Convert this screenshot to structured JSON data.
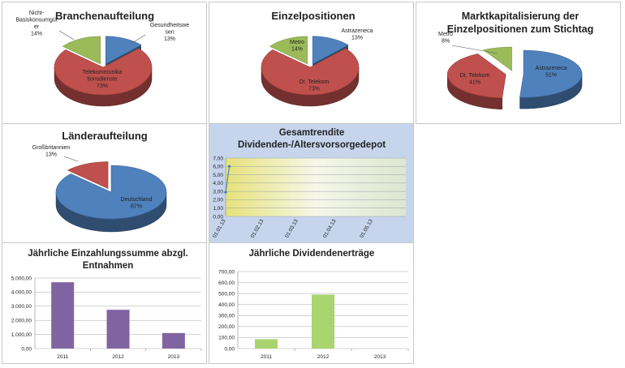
{
  "colors": {
    "blue": "#4f81bd",
    "red": "#c0504d",
    "green": "#9bbb59",
    "purple": "#8064a2",
    "lightgreen": "#a9d46f",
    "line": "#4f81bd"
  },
  "chart_data": [
    {
      "id": "branchen",
      "type": "pie",
      "title": "Branchenaufteilung",
      "slices": [
        {
          "label": "Gesundheitswesen",
          "label_lines": [
            "Gesundheitswe",
            "sen"
          ],
          "pct_label": "13%",
          "value": 13,
          "color": "#4f81bd"
        },
        {
          "label": "Telekommunikationsdienste",
          "label_lines": [
            "Telekommunika",
            "tionsdienste"
          ],
          "pct_label": "73%",
          "value": 73,
          "color": "#c0504d"
        },
        {
          "label": "Nicht-Basiskonsumgüter",
          "label_lines": [
            "Nicht-",
            "Basiskonsumgüt",
            "er"
          ],
          "pct_label": "14%",
          "value": 14,
          "color": "#9bbb59"
        }
      ]
    },
    {
      "id": "einzel",
      "type": "pie",
      "title": "Einzelpositionen",
      "slices": [
        {
          "label": "Astrazeneca",
          "label_lines": [
            "Astrazeneca"
          ],
          "pct_label": "13%",
          "value": 13,
          "color": "#4f81bd"
        },
        {
          "label": "Dt. Telekom",
          "label_lines": [
            "Dt. Telekom"
          ],
          "pct_label": "73%",
          "value": 73,
          "color": "#c0504d"
        },
        {
          "label": "Metro",
          "label_lines": [
            "Metro"
          ],
          "pct_label": "14%",
          "value": 14,
          "color": "#9bbb59"
        }
      ]
    },
    {
      "id": "marktkap",
      "type": "pie",
      "title": "Marktkapitalisierung der Einzelpositionen zum Stichtag",
      "title_lines": [
        "Marktkapitalisierung der",
        "Einzelpositionen zum Stichtag"
      ],
      "slices": [
        {
          "label": "Astrazeneca",
          "label_lines": [
            "Astrazeneca"
          ],
          "pct_label": "51%",
          "value": 51,
          "color": "#4f81bd"
        },
        {
          "label": "Dt. Telekom",
          "label_lines": [
            "Dt. Telekom"
          ],
          "pct_label": "41%",
          "value": 41,
          "color": "#c0504d"
        },
        {
          "label": "Metro",
          "label_lines": [
            "Metro"
          ],
          "pct_label": "8%",
          "value": 8,
          "color": "#9bbb59"
        }
      ]
    },
    {
      "id": "laender",
      "type": "pie",
      "title": "Länderaufteilung",
      "slices": [
        {
          "label": "Deutschland",
          "label_lines": [
            "Deutschland"
          ],
          "pct_label": "87%",
          "value": 87,
          "color": "#4f81bd"
        },
        {
          "label": "Großbritannien",
          "label_lines": [
            "Großbritannien"
          ],
          "pct_label": "13%",
          "value": 13,
          "color": "#c0504d"
        }
      ]
    },
    {
      "id": "gesamtrendite",
      "type": "line",
      "title": "Gesamtrendite Dividenden-/Altersvorsorgedepot",
      "title_lines": [
        "Gesamtrendite",
        "Dividenden-/Altersvorsorgedepot"
      ],
      "x_ticks": [
        "01.01.13",
        "01.02.13",
        "01.03.13",
        "01.04.13",
        "01.05.13"
      ],
      "y_ticks": [
        "0,00",
        "1,00",
        "2,00",
        "3,00",
        "4,00",
        "5,00",
        "6,00",
        "7,00"
      ],
      "ylim": [
        0,
        7
      ],
      "xlim": [
        "2013-01-01",
        "2013-05-28"
      ],
      "grid": true,
      "series": [
        {
          "x": [
            "2013-01-01",
            "2013-01-04"
          ],
          "y": [
            2.9,
            6.0
          ]
        }
      ]
    },
    {
      "id": "einzahlung",
      "type": "bar",
      "title": "Jährliche Einzahlungssumme abzgl. Entnahmen",
      "title_lines": [
        "Jährliche Einzahlungssumme abzgl.",
        "Entnahmen"
      ],
      "categories": [
        "2011",
        "2012",
        "2013"
      ],
      "values": [
        4700,
        2750,
        1100
      ],
      "y_ticks": [
        "0,00",
        "1.000,00",
        "2.000,00",
        "3.000,00",
        "4.000,00",
        "5.000,00"
      ],
      "ylim": [
        0,
        5000
      ],
      "color": "#8064a2"
    },
    {
      "id": "dividenden",
      "type": "bar",
      "title": "Jährliche Dividendenerträge",
      "categories": [
        "2011",
        "2012",
        "2013"
      ],
      "values": [
        85,
        490,
        0
      ],
      "y_ticks": [
        "0,00",
        "100,00",
        "200,00",
        "300,00",
        "400,00",
        "500,00",
        "600,00",
        "700,00"
      ],
      "ylim": [
        0,
        700
      ],
      "color": "#a9d46f"
    }
  ]
}
